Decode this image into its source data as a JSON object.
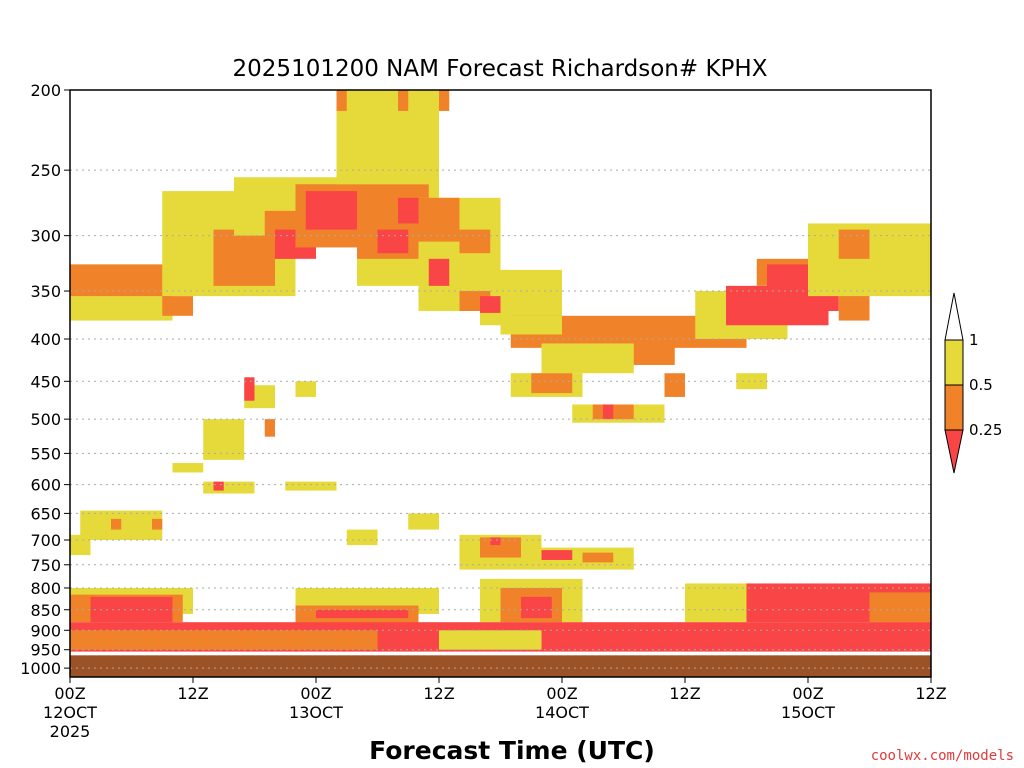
{
  "chart_data": {
    "type": "heatmap",
    "title": "2025101200 NAM Forecast Richardson# KPHX",
    "xlabel": "Forecast Time (UTC)",
    "ylabel": "",
    "y_scale": "log-pressure (inverted)",
    "ylim_hpa": [
      1025,
      200
    ],
    "xlim_hours": [
      0,
      84
    ],
    "y_ticks": [
      "200",
      "250",
      "300",
      "350",
      "400",
      "450",
      "500",
      "550",
      "600",
      "650",
      "700",
      "750",
      "800",
      "850",
      "900",
      "950",
      "1000"
    ],
    "x_ticks": [
      {
        "hour": 0,
        "line1": "00Z",
        "line2": "12OCT",
        "line3": "2025"
      },
      {
        "hour": 12,
        "line1": "12Z",
        "line2": "",
        "line3": ""
      },
      {
        "hour": 24,
        "line1": "00Z",
        "line2": "13OCT",
        "line3": ""
      },
      {
        "hour": 36,
        "line1": "12Z",
        "line2": "",
        "line3": ""
      },
      {
        "hour": 48,
        "line1": "00Z",
        "line2": "14OCT",
        "line3": ""
      },
      {
        "hour": 60,
        "line1": "12Z",
        "line2": "",
        "line3": ""
      },
      {
        "hour": 72,
        "line1": "00Z",
        "line2": "15OCT",
        "line3": ""
      },
      {
        "hour": 84,
        "line1": "12Z",
        "line2": "",
        "line3": ""
      }
    ],
    "grid": "dotted horizontal at pressure levels",
    "legend": {
      "placement": "right",
      "labels": [
        "1",
        "0.5",
        "0.25"
      ],
      "colors": {
        "0.5-1": "#e6d93a",
        "0.25-0.5": "#f0822a",
        "<0.25": "#f94545"
      }
    },
    "terrain_color": "#9a5226",
    "terrain_hpa": 965,
    "shaded_regions": [
      {
        "class": "0.5-1",
        "t0": 0,
        "t1": 10,
        "p0": 325,
        "p1": 380
      },
      {
        "class": "0.25-0.5",
        "t0": 0,
        "t1": 10,
        "p0": 325,
        "p1": 355
      },
      {
        "class": "0.5-1",
        "t0": 9,
        "t1": 22,
        "p0": 265,
        "p1": 355
      },
      {
        "class": "0.25-0.5",
        "t0": 9,
        "t1": 12,
        "p0": 355,
        "p1": 375
      },
      {
        "class": "0.25-0.5",
        "t0": 14,
        "t1": 20,
        "p0": 295,
        "p1": 345
      },
      {
        "class": "0.5-1",
        "t0": 16,
        "t1": 28,
        "p0": 255,
        "p1": 300
      },
      {
        "class": "0.25-0.5",
        "t0": 19,
        "t1": 22,
        "p0": 280,
        "p1": 320
      },
      {
        "class": "<0.25",
        "t0": 20,
        "t1": 24,
        "p0": 295,
        "p1": 320
      },
      {
        "class": "0.25-0.5",
        "t0": 22,
        "t1": 30,
        "p0": 260,
        "p1": 310
      },
      {
        "class": "<0.25",
        "t0": 23,
        "t1": 29,
        "p0": 265,
        "p1": 295
      },
      {
        "class": "0.5-1",
        "t0": 28,
        "t1": 36,
        "p0": 245,
        "p1": 345
      },
      {
        "class": "0.25-0.5",
        "t0": 28,
        "t1": 35,
        "p0": 260,
        "p1": 320
      },
      {
        "class": "<0.25",
        "t0": 32,
        "t1": 34,
        "p0": 270,
        "p1": 290
      },
      {
        "class": "<0.25",
        "t0": 30,
        "t1": 33,
        "p0": 295,
        "p1": 315
      },
      {
        "class": "0.5-1",
        "t0": 34,
        "t1": 42,
        "p0": 270,
        "p1": 370
      },
      {
        "class": "0.25-0.5",
        "t0": 34,
        "t1": 38,
        "p0": 270,
        "p1": 305
      },
      {
        "class": "<0.25",
        "t0": 35,
        "t1": 37,
        "p0": 320,
        "p1": 345
      },
      {
        "class": "0.25-0.5",
        "t0": 38,
        "t1": 41,
        "p0": 295,
        "p1": 315
      },
      {
        "class": "0.5-1",
        "t0": 26,
        "t1": 36,
        "p0": 200,
        "p1": 260
      },
      {
        "class": "0.25-0.5",
        "t0": 26,
        "t1": 27,
        "p0": 200,
        "p1": 212
      },
      {
        "class": "0.25-0.5",
        "t0": 32,
        "t1": 33,
        "p0": 200,
        "p1": 212
      },
      {
        "class": "0.25-0.5",
        "t0": 36,
        "t1": 37,
        "p0": 200,
        "p1": 212
      },
      {
        "class": "0.5-1",
        "t0": 40,
        "t1": 48,
        "p0": 330,
        "p1": 385
      },
      {
        "class": "0.25-0.5",
        "t0": 38,
        "t1": 41,
        "p0": 350,
        "p1": 370
      },
      {
        "class": "<0.25",
        "t0": 40,
        "t1": 42,
        "p0": 355,
        "p1": 372
      },
      {
        "class": "0.25-0.5",
        "t0": 43,
        "t1": 66,
        "p0": 375,
        "p1": 410
      },
      {
        "class": "0.25-0.5",
        "t0": 50,
        "t1": 59,
        "p0": 395,
        "p1": 430
      },
      {
        "class": "0.5-1",
        "t0": 46,
        "t1": 55,
        "p0": 405,
        "p1": 440
      },
      {
        "class": "0.5-1",
        "t0": 42,
        "t1": 48,
        "p0": 375,
        "p1": 395
      },
      {
        "class": "0.5-1",
        "t0": 61,
        "t1": 70,
        "p0": 350,
        "p1": 400
      },
      {
        "class": "<0.25",
        "t0": 64,
        "t1": 74,
        "p0": 345,
        "p1": 385
      },
      {
        "class": "0.25-0.5",
        "t0": 67,
        "t1": 75,
        "p0": 320,
        "p1": 345
      },
      {
        "class": "<0.25",
        "t0": 68,
        "t1": 75,
        "p0": 325,
        "p1": 370
      },
      {
        "class": "0.25-0.5",
        "t0": 75,
        "t1": 78,
        "p0": 340,
        "p1": 380
      },
      {
        "class": "0.5-1",
        "t0": 72,
        "t1": 84,
        "p0": 290,
        "p1": 355
      },
      {
        "class": "0.25-0.5",
        "t0": 75,
        "t1": 78,
        "p0": 295,
        "p1": 320
      },
      {
        "class": "0.5-1",
        "t0": 43,
        "t1": 50,
        "p0": 440,
        "p1": 470
      },
      {
        "class": "0.25-0.5",
        "t0": 45,
        "t1": 49,
        "p0": 440,
        "p1": 465
      },
      {
        "class": "0.5-1",
        "t0": 49,
        "t1": 58,
        "p0": 480,
        "p1": 505
      },
      {
        "class": "0.25-0.5",
        "t0": 51,
        "t1": 55,
        "p0": 480,
        "p1": 500
      },
      {
        "class": "<0.25",
        "t0": 52,
        "t1": 53,
        "p0": 480,
        "p1": 500
      },
      {
        "class": "0.25-0.5",
        "t0": 58,
        "t1": 60,
        "p0": 440,
        "p1": 470
      },
      {
        "class": "0.5-1",
        "t0": 65,
        "t1": 68,
        "p0": 440,
        "p1": 460
      },
      {
        "class": "0.5-1",
        "t0": 13,
        "t1": 17,
        "p0": 500,
        "p1": 560
      },
      {
        "class": "0.5-1",
        "t0": 10,
        "t1": 13,
        "p0": 565,
        "p1": 580
      },
      {
        "class": "0.5-1",
        "t0": 13,
        "t1": 18,
        "p0": 595,
        "p1": 615
      },
      {
        "class": "<0.25",
        "t0": 14,
        "t1": 15,
        "p0": 595,
        "p1": 610
      },
      {
        "class": "0.5-1",
        "t0": 21,
        "t1": 26,
        "p0": 595,
        "p1": 610
      },
      {
        "class": "0.5-1",
        "t0": 17,
        "t1": 20,
        "p0": 455,
        "p1": 485
      },
      {
        "class": "<0.25",
        "t0": 17,
        "t1": 18,
        "p0": 445,
        "p1": 475
      },
      {
        "class": "0.5-1",
        "t0": 22,
        "t1": 24,
        "p0": 450,
        "p1": 470
      },
      {
        "class": "0.25-0.5",
        "t0": 19,
        "t1": 20,
        "p0": 500,
        "p1": 525
      },
      {
        "class": "0.5-1",
        "t0": 1,
        "t1": 9,
        "p0": 645,
        "p1": 700
      },
      {
        "class": "0.25-0.5",
        "t0": 4,
        "t1": 5,
        "p0": 660,
        "p1": 680
      },
      {
        "class": "0.25-0.5",
        "t0": 8,
        "t1": 9,
        "p0": 660,
        "p1": 680
      },
      {
        "class": "0.5-1",
        "t0": 0,
        "t1": 2,
        "p0": 690,
        "p1": 730
      },
      {
        "class": "0.5-1",
        "t0": 27,
        "t1": 30,
        "p0": 680,
        "p1": 710
      },
      {
        "class": "0.5-1",
        "t0": 33,
        "t1": 36,
        "p0": 650,
        "p1": 680
      },
      {
        "class": "0.5-1",
        "t0": 38,
        "t1": 46,
        "p0": 690,
        "p1": 760
      },
      {
        "class": "0.25-0.5",
        "t0": 40,
        "t1": 44,
        "p0": 695,
        "p1": 735
      },
      {
        "class": "<0.25",
        "t0": 41,
        "t1": 42,
        "p0": 695,
        "p1": 710
      },
      {
        "class": "0.5-1",
        "t0": 45,
        "t1": 55,
        "p0": 715,
        "p1": 760
      },
      {
        "class": "<0.25",
        "t0": 46,
        "t1": 49,
        "p0": 720,
        "p1": 740
      },
      {
        "class": "0.25-0.5",
        "t0": 50,
        "t1": 53,
        "p0": 725,
        "p1": 745
      },
      {
        "class": "0.5-1",
        "t0": 0,
        "t1": 12,
        "p0": 800,
        "p1": 860
      },
      {
        "class": "0.25-0.5",
        "t0": 0,
        "t1": 11,
        "p0": 815,
        "p1": 880
      },
      {
        "class": "<0.25",
        "t0": 2,
        "t1": 10,
        "p0": 820,
        "p1": 880
      },
      {
        "class": "0.5-1",
        "t0": 22,
        "t1": 36,
        "p0": 800,
        "p1": 860
      },
      {
        "class": "0.25-0.5",
        "t0": 22,
        "t1": 34,
        "p0": 840,
        "p1": 890
      },
      {
        "class": "<0.25",
        "t0": 24,
        "t1": 33,
        "p0": 850,
        "p1": 870
      },
      {
        "class": "0.5-1",
        "t0": 40,
        "t1": 50,
        "p0": 780,
        "p1": 880
      },
      {
        "class": "0.25-0.5",
        "t0": 42,
        "t1": 48,
        "p0": 800,
        "p1": 880
      },
      {
        "class": "<0.25",
        "t0": 44,
        "t1": 47,
        "p0": 820,
        "p1": 870
      },
      {
        "class": "0.5-1",
        "t0": 60,
        "t1": 84,
        "p0": 790,
        "p1": 880
      },
      {
        "class": "<0.25",
        "t0": 66,
        "t1": 84,
        "p0": 790,
        "p1": 880
      },
      {
        "class": "0.25-0.5",
        "t0": 78,
        "t1": 84,
        "p0": 810,
        "p1": 880
      },
      {
        "class": "<0.25",
        "t0": 0,
        "t1": 84,
        "p0": 880,
        "p1": 955
      },
      {
        "class": "0.25-0.5",
        "t0": 0,
        "t1": 30,
        "p0": 900,
        "p1": 950
      },
      {
        "class": "0.5-1",
        "t0": 36,
        "t1": 46,
        "p0": 900,
        "p1": 950
      }
    ]
  },
  "credit": "coolwx.com/models"
}
